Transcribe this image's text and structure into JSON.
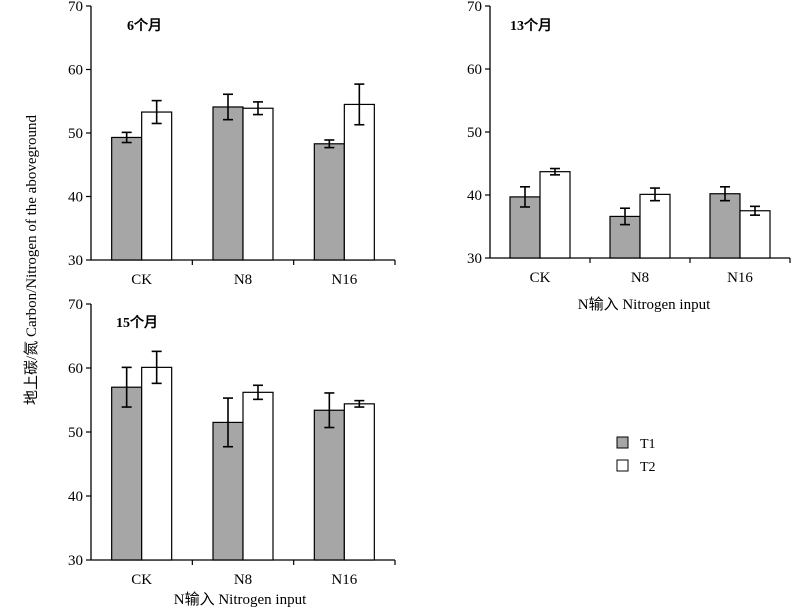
{
  "y_axis_label": "地上碳/氮 Carbon/Nitrogen of the aboveground",
  "x_axis_label": "N输入 Nitrogen input",
  "legend": [
    {
      "label": "T1",
      "color": "#a6a6a6"
    },
    {
      "label": "T2",
      "color": "#ffffff"
    }
  ],
  "chart_data": [
    {
      "type": "bar",
      "title": "6个月",
      "categories": [
        "CK",
        "N8",
        "N16"
      ],
      "ylim": [
        30,
        70
      ],
      "yticks": [
        30,
        40,
        50,
        60,
        70
      ],
      "xlabel": "",
      "series": [
        {
          "name": "T1",
          "values": [
            49.3,
            54.1,
            48.3
          ],
          "errors": [
            0.8,
            2.0,
            0.6
          ]
        },
        {
          "name": "T2",
          "values": [
            53.3,
            53.9,
            54.5
          ],
          "errors": [
            1.8,
            1.0,
            3.2
          ]
        }
      ]
    },
    {
      "type": "bar",
      "title": "13个月",
      "categories": [
        "CK",
        "N8",
        "N16"
      ],
      "ylim": [
        30,
        70
      ],
      "yticks": [
        30,
        40,
        50,
        60,
        70
      ],
      "xlabel": "N输入 Nitrogen input",
      "series": [
        {
          "name": "T1",
          "values": [
            39.7,
            36.6,
            40.2
          ],
          "errors": [
            1.6,
            1.3,
            1.1
          ]
        },
        {
          "name": "T2",
          "values": [
            43.7,
            40.1,
            37.5
          ],
          "errors": [
            0.5,
            1.0,
            0.7
          ]
        }
      ]
    },
    {
      "type": "bar",
      "title": "15个月",
      "categories": [
        "CK",
        "N8",
        "N16"
      ],
      "ylim": [
        30,
        70
      ],
      "yticks": [
        30,
        40,
        50,
        60,
        70
      ],
      "xlabel": "N输入 Nitrogen input",
      "series": [
        {
          "name": "T1",
          "values": [
            57.0,
            51.5,
            53.4
          ],
          "errors": [
            3.1,
            3.8,
            2.7
          ]
        },
        {
          "name": "T2",
          "values": [
            60.1,
            56.2,
            54.4
          ],
          "errors": [
            2.5,
            1.1,
            0.5
          ]
        }
      ]
    }
  ]
}
